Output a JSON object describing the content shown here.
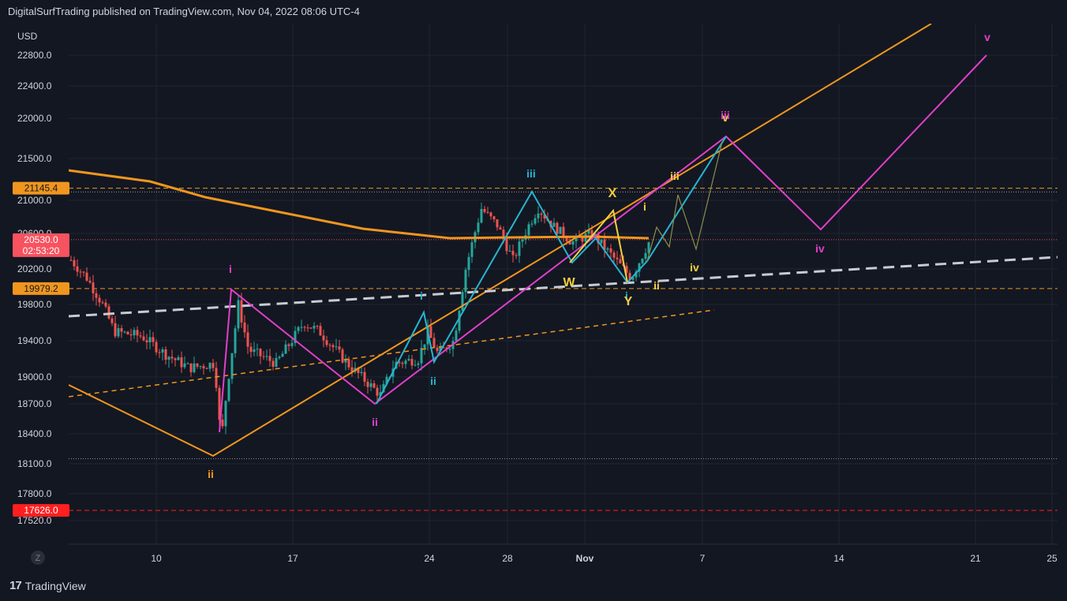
{
  "header": {
    "text": "DigitalSurfTrading published on TradingView.com, Nov 04, 2022 08:06 UTC-4"
  },
  "footer": {
    "brand": "TradingView",
    "logo_glyph": "17"
  },
  "toolbar": {
    "z_label": "Z"
  },
  "colors": {
    "background": "#131722",
    "grid": "#1f2433",
    "orange": "#f0961e",
    "magenta": "#e040c8",
    "cyan": "#26b5d0",
    "yellow": "#f4d03f",
    "up_candle": "#26a69a",
    "down_candle": "#ef5350",
    "red_level": "#ff1f1f",
    "price_label": "#f7525f"
  },
  "chart_data": {
    "type": "candlestick",
    "currency": "USD",
    "x_ticks": [
      "10",
      "17",
      "24",
      "28",
      "Nov",
      "7",
      "14",
      "21",
      "25"
    ],
    "y_ticks": [
      22800.0,
      22400.0,
      22000.0,
      21500.0,
      21000.0,
      20600.0,
      20200.0,
      19800.0,
      19400.0,
      19000.0,
      18700.0,
      18400.0,
      18100.0,
      17800.0,
      17520.0
    ],
    "y_tick_labels": [
      "22800.0",
      "22400.0",
      "22000.0",
      "21500.0",
      "21000.0",
      "20600.0",
      "20200.0",
      "19800.0",
      "19400.0",
      "19000.0",
      "18700.0",
      "18400.0",
      "18100.0",
      "17800.0",
      "17520.0"
    ],
    "price_labels": [
      {
        "value": 21145.4,
        "text": "21145.4",
        "color": "#f0961e"
      },
      {
        "value": 20530.0,
        "text": "20530.0",
        "sub": "02:53:20",
        "color": "#f7525f"
      },
      {
        "value": 19979.2,
        "text": "19979.2",
        "color": "#f0961e"
      },
      {
        "value": 17626.0,
        "text": "17626.0",
        "color": "#ff1f1f"
      }
    ],
    "horizontal_levels": [
      {
        "value": 21145.4,
        "style": "dashed",
        "color": "#f0961e"
      },
      {
        "value": 21100.0,
        "style": "dotted",
        "color": "#9598a1"
      },
      {
        "value": 20530.0,
        "style": "dotted",
        "color": "#f7525f"
      },
      {
        "value": 19979.2,
        "style": "dashed",
        "color": "#f0961e"
      },
      {
        "value": 18150.0,
        "style": "dotted",
        "color": "#9598a1"
      },
      {
        "value": 17626.0,
        "style": "dashed",
        "color": "#ff1f1f"
      }
    ],
    "wave_labels": [
      {
        "text": "i",
        "color": "#e040c8"
      },
      {
        "text": "ii",
        "color": "#f0961e"
      },
      {
        "text": "ii",
        "color": "#e040c8"
      },
      {
        "text": "i",
        "color": "#26b5d0"
      },
      {
        "text": "ii",
        "color": "#26b5d0"
      },
      {
        "text": "iii",
        "color": "#26b5d0"
      },
      {
        "text": "X",
        "color": "#f4d03f"
      },
      {
        "text": "W",
        "color": "#f4d03f"
      },
      {
        "text": "i",
        "color": "#26b5d0"
      },
      {
        "text": "Y",
        "color": "#f4d03f"
      },
      {
        "text": "i",
        "color": "#f4d03f"
      },
      {
        "text": "ii",
        "color": "#f4d03f"
      },
      {
        "text": "iii",
        "color": "#f4d03f"
      },
      {
        "text": "iv",
        "color": "#f4d03f"
      },
      {
        "text": "v",
        "color": "#f4d03f"
      },
      {
        "text": "iii",
        "color": "#e040c8"
      },
      {
        "text": "iv",
        "color": "#e040c8"
      },
      {
        "text": "v",
        "color": "#e040c8"
      }
    ]
  }
}
